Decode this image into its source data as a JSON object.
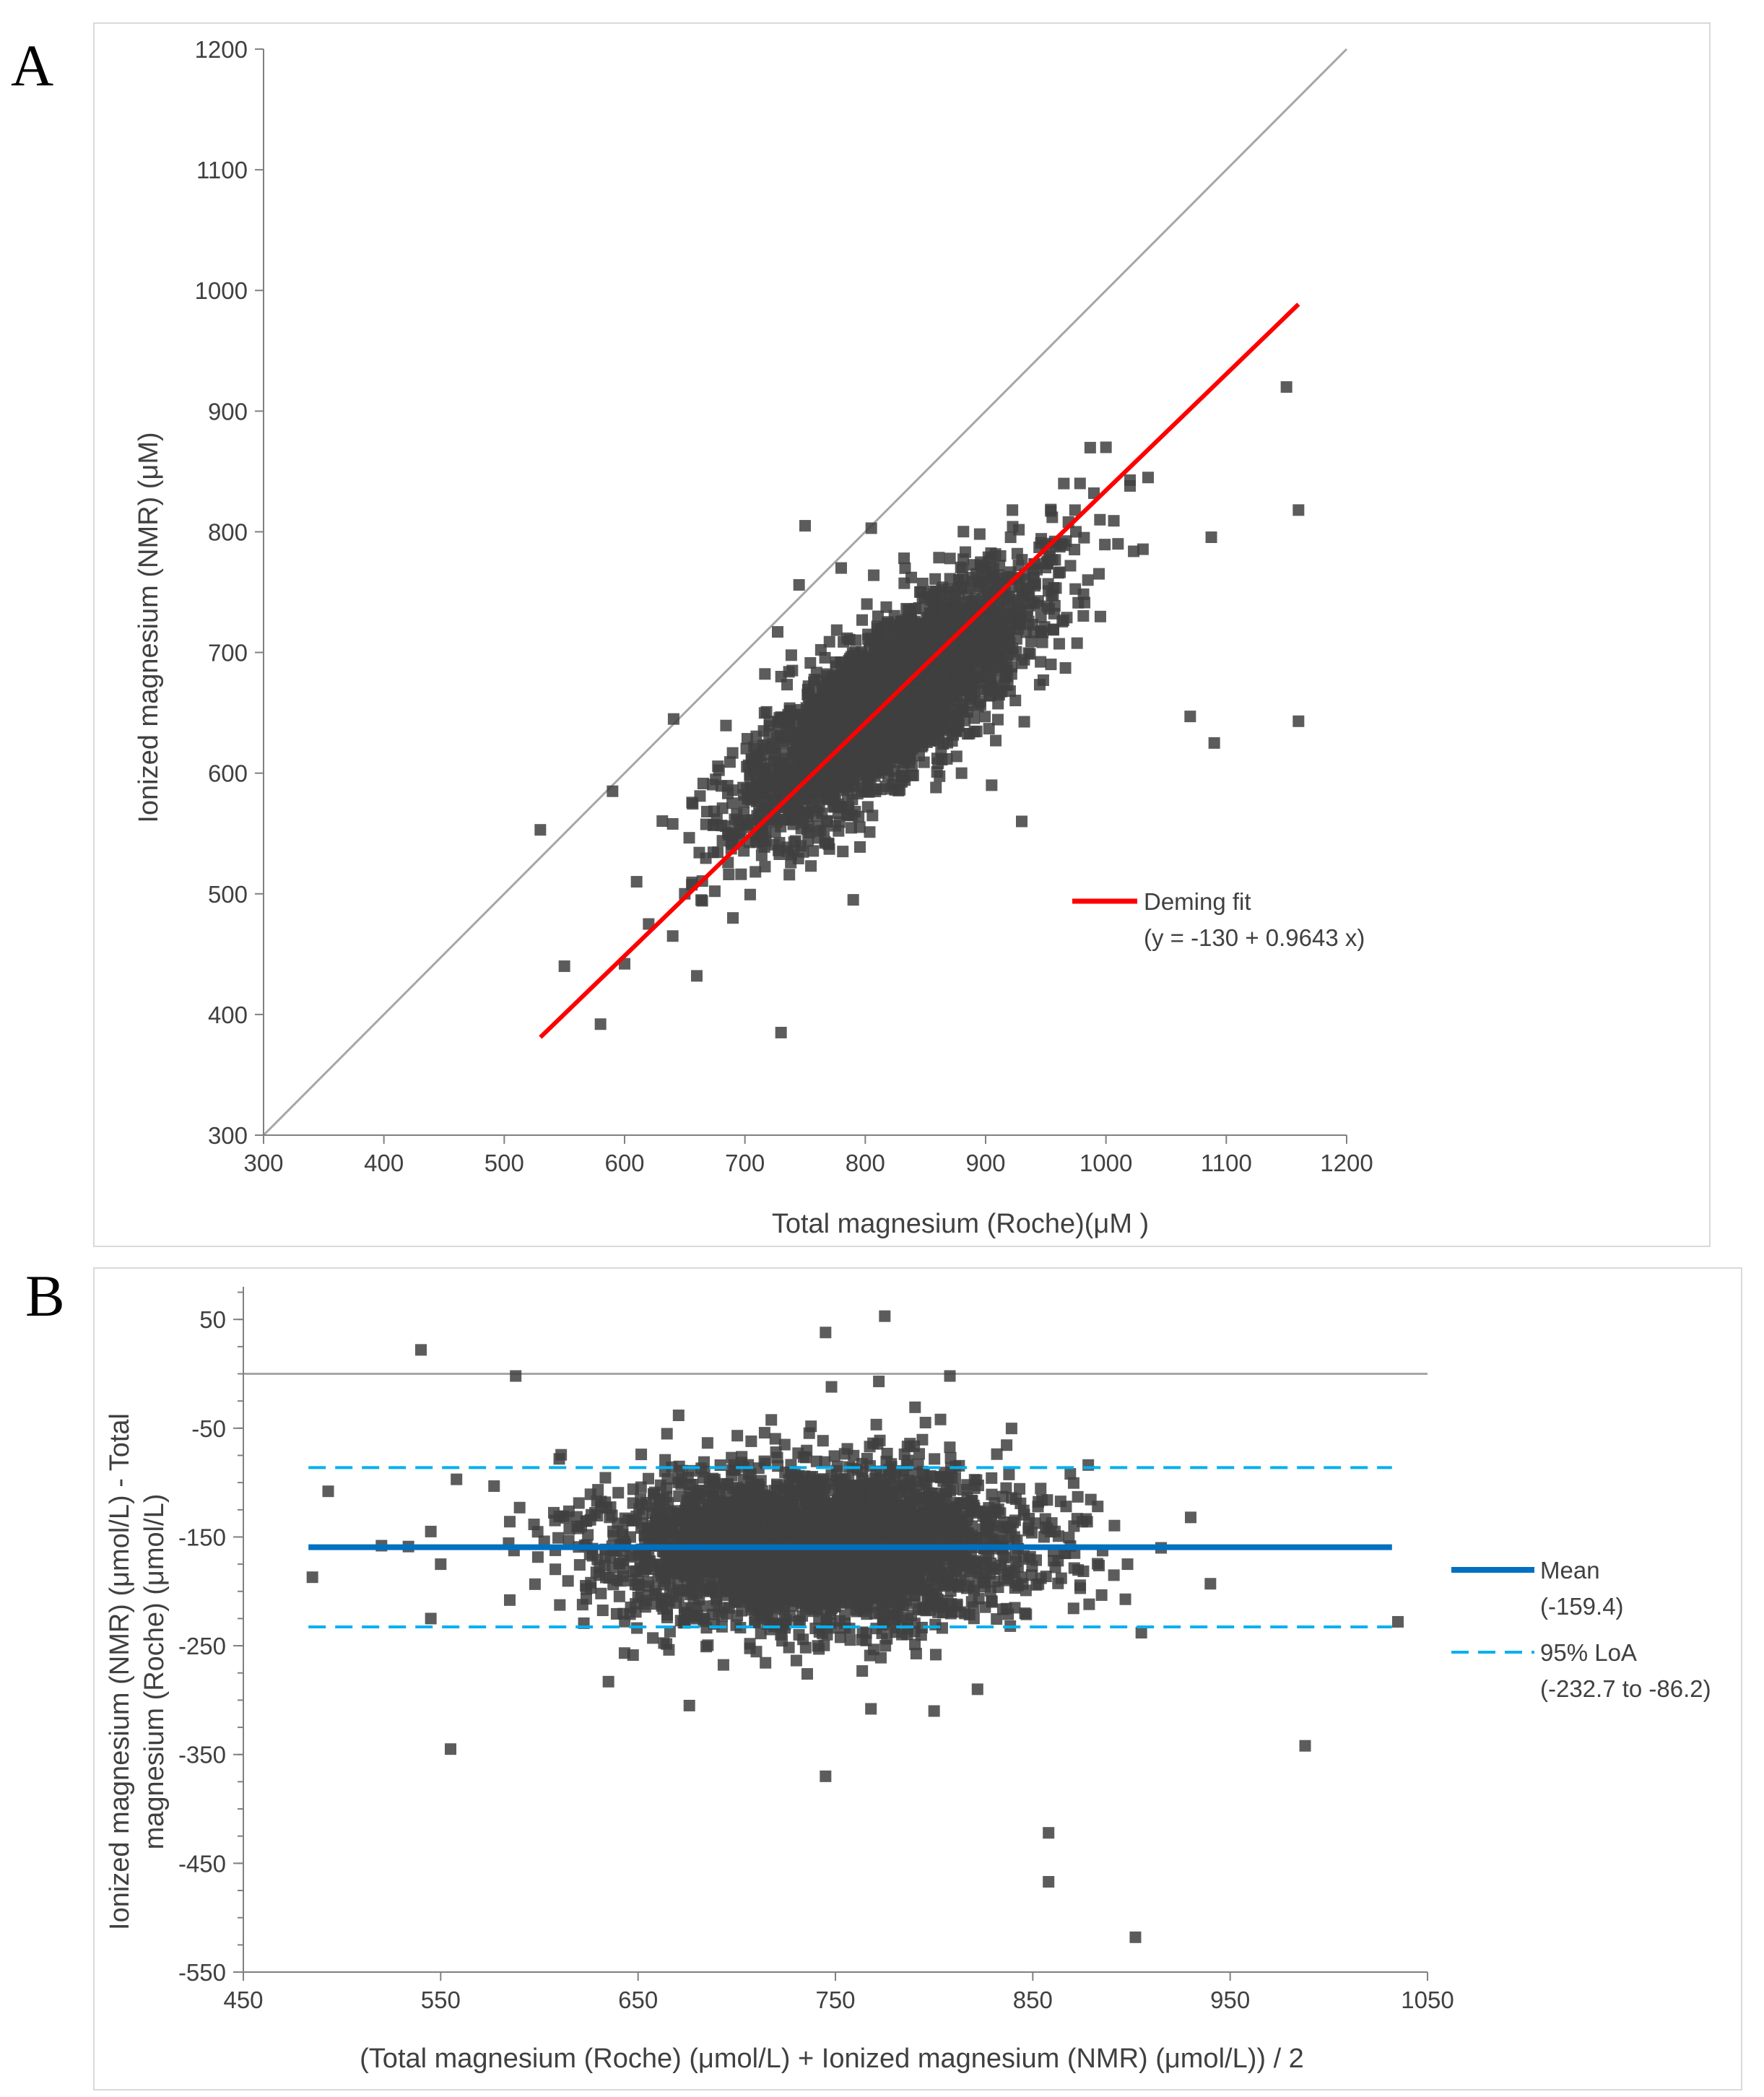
{
  "panels": {
    "a": {
      "letter": "A"
    },
    "b": {
      "letter": "B"
    }
  },
  "colors": {
    "points": "#404040",
    "deming": "#ff0000",
    "identity": "#a6a6a6",
    "mean": "#0070c0",
    "loa": "#00b0f0",
    "zero": "#a6a6a6"
  },
  "chart_data": [
    {
      "type": "scatter",
      "panel": "A",
      "title": "",
      "xlabel": "Total magnesium (Roche)(μM )",
      "ylabel": "Ionized magnesium (NMR) (μM)",
      "xlim": [
        300,
        1200
      ],
      "ylim": [
        300,
        1200
      ],
      "x_ticks": [
        "300",
        "400",
        "500",
        "600",
        "700",
        "800",
        "900",
        "1000",
        "1100",
        "1200"
      ],
      "y_ticks": [
        "300",
        "400",
        "500",
        "600",
        "700",
        "800",
        "900",
        "1000",
        "1100",
        "1200"
      ],
      "identity_line": {
        "from": [
          300,
          300
        ],
        "to": [
          1200,
          1200
        ]
      },
      "deming_fit": {
        "intercept": -130,
        "slope": 0.9643,
        "x_range": [
          530,
          1160
        ]
      },
      "legend": {
        "label": "Deming fit",
        "equation": "(y = -130 + 0.9643 x)",
        "position": "right"
      },
      "cluster": {
        "n": 3200,
        "mean_x": 820,
        "mean_y": 660,
        "sd_x": 58,
        "sd_y": 52,
        "corr": 0.78,
        "seed": 11
      },
      "outliers": [
        [
          530,
          553
        ],
        [
          550,
          440
        ],
        [
          580,
          392
        ],
        [
          590,
          585
        ],
        [
          600,
          442
        ],
        [
          610,
          510
        ],
        [
          620,
          475
        ],
        [
          640,
          465
        ],
        [
          650,
          500
        ],
        [
          660,
          432
        ],
        [
          690,
          480
        ],
        [
          730,
          385
        ],
        [
          730,
          680
        ],
        [
          750,
          805
        ],
        [
          745,
          756
        ],
        [
          780,
          770
        ],
        [
          790,
          495
        ],
        [
          805,
          803
        ],
        [
          930,
          560
        ],
        [
          1070,
          647
        ],
        [
          1090,
          625
        ],
        [
          1150,
          920
        ],
        [
          1160,
          818
        ],
        [
          1160,
          643
        ],
        [
          1000,
          870
        ],
        [
          1020,
          838
        ],
        [
          1035,
          845
        ],
        [
          985,
          760
        ],
        [
          1010,
          790
        ],
        [
          995,
          810
        ],
        [
          965,
          840
        ],
        [
          975,
          800
        ],
        [
          905,
          590
        ],
        [
          880,
          600
        ],
        [
          990,
          832
        ]
      ]
    },
    {
      "type": "scatter",
      "panel": "B",
      "title": "",
      "xlabel": "(Total magnesium (Roche) (μmol/L) + Ionized magnesium (NMR) (μmol/L)) / 2",
      "ylabel_line1": "Ionized magnesium (NMR) (μmol/L) - Total",
      "ylabel_line2": "magnesium  (Roche) (μmol/L)",
      "xlim": [
        450,
        1050
      ],
      "ylim": [
        -550,
        80
      ],
      "x_ticks": [
        "450",
        "550",
        "650",
        "750",
        "850",
        "950",
        "1050"
      ],
      "y_ticks": [
        "50",
        "-50",
        "-150",
        "-250",
        "-350",
        "-450",
        "-550"
      ],
      "zero_line": 0,
      "mean": -159.4,
      "loa": [
        -232.7,
        -86.2
      ],
      "legend": {
        "mean_label": "Mean",
        "mean_value": "(-159.4)",
        "loa_label": "95% LoA",
        "loa_value": "(-232.7 to -86.2)",
        "position": "right"
      },
      "cluster": {
        "n": 3200,
        "mean_x": 740,
        "mean_y": -159,
        "sd_x": 52,
        "sd_y": 36,
        "corr": 0.0,
        "seed": 23
      },
      "outliers": [
        [
          485,
          -187
        ],
        [
          493,
          -108
        ],
        [
          520,
          -158
        ],
        [
          540,
          22
        ],
        [
          545,
          -145
        ],
        [
          545,
          -225
        ],
        [
          550,
          -175
        ],
        [
          555,
          -345
        ],
        [
          558,
          -97
        ],
        [
          585,
          -208
        ],
        [
          588,
          -2
        ],
        [
          590,
          -123
        ],
        [
          745,
          38
        ],
        [
          748,
          -12
        ],
        [
          775,
          53
        ],
        [
          772,
          -7
        ],
        [
          808,
          -2
        ],
        [
          745,
          -370
        ],
        [
          858,
          -422
        ],
        [
          858,
          -467
        ],
        [
          902,
          -518
        ],
        [
          988,
          -342
        ],
        [
          1035,
          -228
        ],
        [
          940,
          -193
        ],
        [
          930,
          -132
        ],
        [
          915,
          -160
        ],
        [
          905,
          -238
        ],
        [
          898,
          -175
        ],
        [
          676,
          -305
        ],
        [
          768,
          -308
        ],
        [
          800,
          -310
        ],
        [
          822,
          -290
        ],
        [
          635,
          -283
        ]
      ]
    }
  ]
}
